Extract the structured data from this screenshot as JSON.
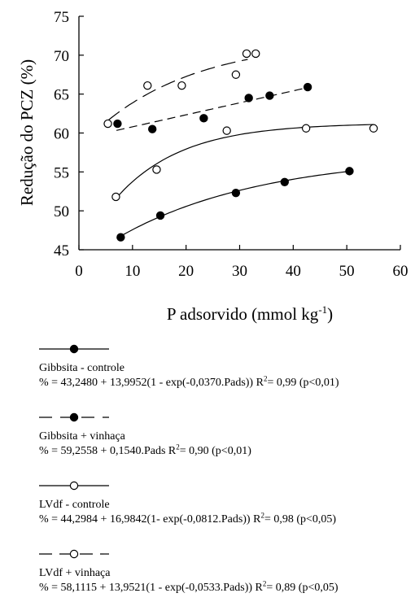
{
  "chart_data": {
    "type": "scatter",
    "xlabel_main": "P adsorvido (mmol kg",
    "xlabel_sup": "-1",
    "xlabel_end": ")",
    "ylabel": "Redução do PCZ (%)",
    "xlim": [
      0,
      60
    ],
    "ylim": [
      45,
      75
    ],
    "xticks": [
      0,
      10,
      20,
      30,
      40,
      50,
      60
    ],
    "yticks": [
      45,
      50,
      55,
      60,
      65,
      70,
      75
    ],
    "grid": false,
    "series": [
      {
        "key": "gib_ctrl",
        "name": "Gibbsita - controle",
        "marker": "filled",
        "dash": "solid",
        "fit": {
          "model": "exp",
          "a": 43.248,
          "b": 13.9952,
          "c": 0.037,
          "x": [
            7.5,
            50.5
          ]
        },
        "x": [
          7.8,
          15.2,
          29.3,
          38.4,
          50.5
        ],
        "y": [
          46.6,
          49.4,
          52.3,
          53.7,
          55.1
        ]
      },
      {
        "key": "gib_vinh",
        "name": "Gibbsita + vinhaça",
        "marker": "filled",
        "dash": "dashed",
        "fit": {
          "model": "linear",
          "a": 59.2558,
          "b": 0.154,
          "x": [
            7.0,
            42.5
          ]
        },
        "x": [
          7.2,
          13.7,
          23.3,
          31.7,
          35.6,
          42.7
        ],
        "y": [
          61.2,
          60.5,
          61.9,
          64.5,
          64.8,
          65.9
        ]
      },
      {
        "key": "lvdf_ctrl",
        "name": "LVdf - controle",
        "marker": "open",
        "dash": "solid",
        "fit": {
          "model": "exp",
          "a": 44.2984,
          "b": 16.9842,
          "c": 0.0812,
          "x": [
            6.8,
            55.0
          ]
        },
        "x": [
          6.9,
          14.5,
          27.6,
          42.4,
          55.0
        ],
        "y": [
          51.8,
          55.3,
          60.3,
          60.6,
          60.6
        ]
      },
      {
        "key": "lvdf_vinh",
        "name": "LVdf + vinhaça",
        "marker": "open",
        "dash": "longdash",
        "fit": {
          "model": "exp",
          "a": 58.1115,
          "b": 13.9521,
          "c": 0.0533,
          "x": [
            5.4,
            31.5
          ]
        },
        "x": [
          5.4,
          12.8,
          19.2,
          29.3,
          31.3,
          33.0
        ],
        "y": [
          61.2,
          66.1,
          66.1,
          67.5,
          70.2,
          70.2
        ]
      }
    ]
  },
  "legend": [
    {
      "name": "Gibbsita - controle",
      "marker": "filled",
      "dash": "solid",
      "eq": "% = 43,2480 + 13,9952(1 - exp(-0,0370.Pads)) R",
      "r2_sup": "2",
      "r2": "= 0,99 (p<0,01)"
    },
    {
      "name": "Gibbsita + vinhaça",
      "marker": "filled",
      "dash": "dashed",
      "eq": "% = 59,2558 + 0,1540.Pads R",
      "r2_sup": "2",
      "r2": "= 0,90 (p<0,01)"
    },
    {
      "name": "LVdf - controle",
      "marker": "open",
      "dash": "solid",
      "eq": "% = 44,2984 + 16,9842(1- exp(-0,0812.Pads)) R",
      "r2_sup": "2",
      "r2": "= 0,98 (p<0,05)"
    },
    {
      "name": "LVdf + vinhaça",
      "marker": "open",
      "dash": "longdash",
      "eq": "% = 58,1115 + 13,9521(1 - exp(-0,0533.Pads)) R",
      "r2_sup": "2",
      "r2": "= 0,89 (p<0,05)"
    }
  ]
}
